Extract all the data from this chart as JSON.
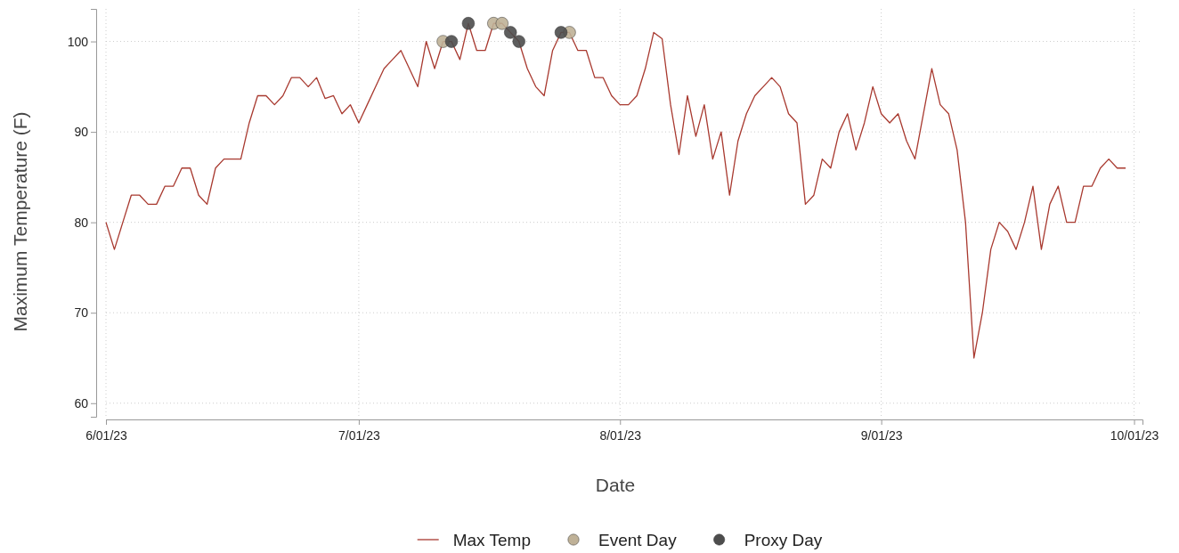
{
  "chart_data": {
    "type": "line",
    "xlabel": "Date",
    "ylabel": "Maximum Temperature (F)",
    "xlim": [
      "2023-06-01",
      "2023-10-02"
    ],
    "xticks": [
      {
        "value": "2023-06-01",
        "label": "6/01/23"
      },
      {
        "value": "2023-07-01",
        "label": "7/01/23"
      },
      {
        "value": "2023-08-01",
        "label": "8/01/23"
      },
      {
        "value": "2023-09-01",
        "label": "9/01/23"
      },
      {
        "value": "2023-10-01",
        "label": "10/01/23"
      }
    ],
    "ylim": [
      58.5,
      103.6
    ],
    "yticks": [
      60,
      70,
      80,
      90,
      100
    ],
    "grid": true,
    "legend": "bottom",
    "series": [
      {
        "name": "Max Temp",
        "color": "#a8392f",
        "x": [
          "2023-06-01",
          "2023-06-02",
          "2023-06-03",
          "2023-06-04",
          "2023-06-05",
          "2023-06-06",
          "2023-06-07",
          "2023-06-08",
          "2023-06-09",
          "2023-06-10",
          "2023-06-11",
          "2023-06-12",
          "2023-06-13",
          "2023-06-14",
          "2023-06-15",
          "2023-06-16",
          "2023-06-17",
          "2023-06-18",
          "2023-06-19",
          "2023-06-20",
          "2023-06-21",
          "2023-06-22",
          "2023-06-23",
          "2023-06-24",
          "2023-06-25",
          "2023-06-26",
          "2023-06-27",
          "2023-06-28",
          "2023-06-29",
          "2023-06-30",
          "2023-07-01",
          "2023-07-02",
          "2023-07-03",
          "2023-07-04",
          "2023-07-05",
          "2023-07-06",
          "2023-07-07",
          "2023-07-08",
          "2023-07-09",
          "2023-07-10",
          "2023-07-11",
          "2023-07-12",
          "2023-07-13",
          "2023-07-14",
          "2023-07-15",
          "2023-07-16",
          "2023-07-17",
          "2023-07-18",
          "2023-07-19",
          "2023-07-20",
          "2023-07-21",
          "2023-07-22",
          "2023-07-23",
          "2023-07-24",
          "2023-07-25",
          "2023-07-26",
          "2023-07-27",
          "2023-07-28",
          "2023-07-29",
          "2023-07-30",
          "2023-07-31",
          "2023-08-01",
          "2023-08-02",
          "2023-08-03",
          "2023-08-04",
          "2023-08-05",
          "2023-08-06",
          "2023-08-07",
          "2023-08-08",
          "2023-08-09",
          "2023-08-10",
          "2023-08-11",
          "2023-08-12",
          "2023-08-13",
          "2023-08-14",
          "2023-08-15",
          "2023-08-16",
          "2023-08-17",
          "2023-08-18",
          "2023-08-19",
          "2023-08-20",
          "2023-08-21",
          "2023-08-22",
          "2023-08-23",
          "2023-08-24",
          "2023-08-25",
          "2023-08-26",
          "2023-08-27",
          "2023-08-28",
          "2023-08-29",
          "2023-08-30",
          "2023-08-31",
          "2023-09-01",
          "2023-09-02",
          "2023-09-03",
          "2023-09-04",
          "2023-09-05",
          "2023-09-06",
          "2023-09-07",
          "2023-09-08",
          "2023-09-09",
          "2023-09-10",
          "2023-09-11",
          "2023-09-12",
          "2023-09-13",
          "2023-09-14",
          "2023-09-15",
          "2023-09-16",
          "2023-09-17",
          "2023-09-18",
          "2023-09-19",
          "2023-09-20",
          "2023-09-21",
          "2023-09-22",
          "2023-09-23",
          "2023-09-24",
          "2023-09-25",
          "2023-09-26",
          "2023-09-27",
          "2023-09-28",
          "2023-09-29",
          "2023-09-30"
        ],
        "values": [
          80,
          77,
          80,
          83,
          83,
          82,
          82,
          84,
          84,
          86,
          86,
          83,
          82,
          86,
          87,
          87,
          87,
          91,
          94,
          94,
          93,
          94,
          96,
          96,
          95,
          96,
          93.7,
          94,
          92,
          93,
          91,
          93,
          95,
          97,
          98,
          99,
          97,
          95,
          100,
          97,
          100,
          100,
          98,
          102,
          99,
          99,
          102,
          102,
          101,
          100,
          97,
          95,
          94,
          99,
          101,
          101,
          99,
          99,
          96,
          96,
          94,
          93,
          93,
          94,
          97,
          101,
          100.3,
          93,
          87.5,
          94,
          89.5,
          93,
          87,
          90,
          83,
          89,
          92,
          94,
          95,
          96,
          95,
          92,
          91,
          82,
          83,
          87,
          86,
          90,
          92,
          88,
          91,
          95,
          92,
          91,
          92,
          89,
          87,
          92,
          97,
          93,
          92,
          88,
          80,
          65,
          70,
          77,
          80,
          79,
          77,
          80,
          84,
          77,
          82,
          84,
          80,
          80,
          84,
          84,
          86,
          87,
          86,
          86
        ]
      },
      {
        "name": "Event Day",
        "type": "scatter",
        "color": "#bfb197",
        "marker": "circle",
        "x": [
          "2023-07-11",
          "2023-07-17",
          "2023-07-18",
          "2023-07-26"
        ],
        "values": [
          100,
          102,
          102,
          101
        ]
      },
      {
        "name": "Proxy Day",
        "type": "scatter",
        "color": "#4d4d4d",
        "marker": "circle",
        "x": [
          "2023-07-12",
          "2023-07-14",
          "2023-07-19",
          "2023-07-20",
          "2023-07-25"
        ],
        "values": [
          100,
          102,
          101,
          100,
          101
        ]
      }
    ]
  }
}
